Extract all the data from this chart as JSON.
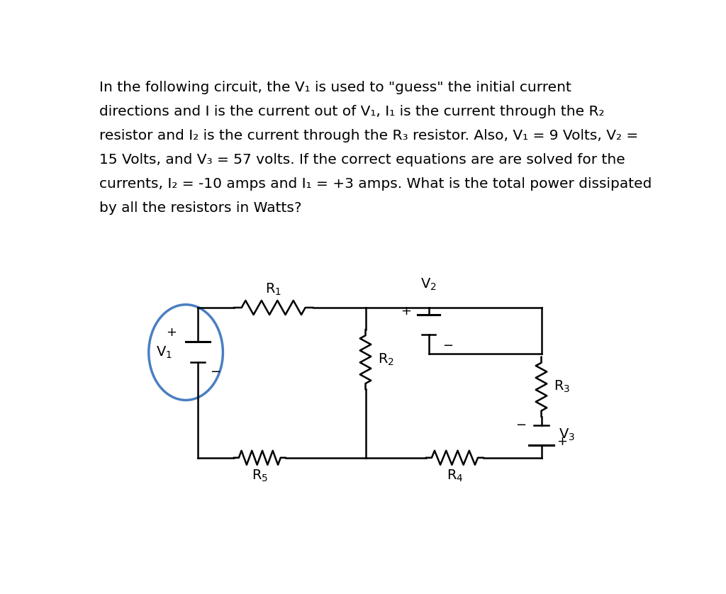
{
  "text_lines": [
    "In the following circuit, the V₁ is used to \"guess\" the initial current",
    "directions and I is the current out of V₁, I₁ is the current through the R₂",
    "resistor and I₂ is the current through the R₃ resistor. Also, V₁ = 9 Volts, V₂ =",
    "15 Volts, and V₃ = 57 volts. If the correct equations are are solved for the",
    "currents, I₂ = -10 amps and I₁ = +3 amps. What is the total power dissipated",
    "by all the resistors in Watts?"
  ],
  "text_color": "#000000",
  "bg_color": "#ffffff",
  "circuit_line_color": "#000000",
  "v1_circle_color": "#4a7fc1",
  "font_size_text": 14.5,
  "font_size_label": 14,
  "font_size_sign": 13
}
